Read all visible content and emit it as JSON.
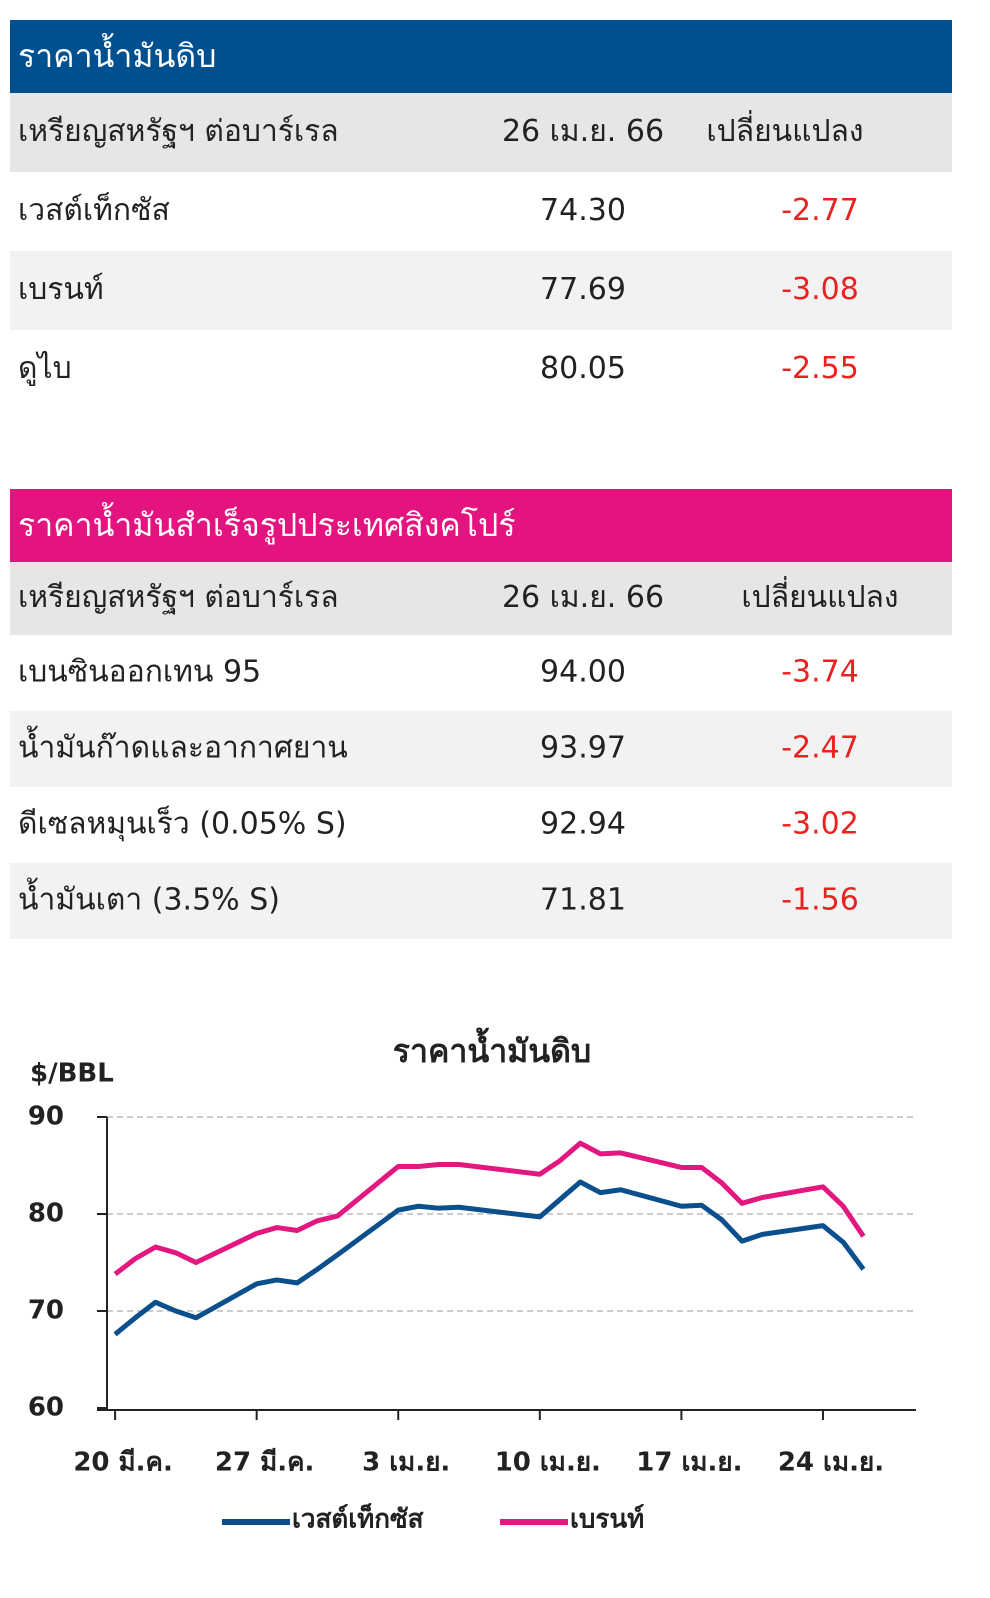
{
  "crude_table": {
    "title": "ราคาน้ำมันดิบ",
    "header": [
      "เหรียญสหรัฐฯ ต่อบาร์เรล",
      "26 เม.ย. 66",
      "เปลี่ยนแปลง"
    ],
    "rows": [
      [
        "เวสต์เท็กซัส",
        "74.30",
        "-2.77"
      ],
      [
        "เบรนท์",
        "77.69",
        "-3.08"
      ],
      [
        "ดูไบ",
        "80.05",
        "-2.55"
      ]
    ]
  },
  "refined_table": {
    "title": "ราคาน้ำมันสำเร็จรูปประเทศสิงคโปร์",
    "header": [
      "เหรียญสหรัฐฯ ต่อบาร์เรล",
      "26 เม.ย. 66",
      "เปลี่ยนแปลง"
    ],
    "rows": [
      [
        "เบนซินออกเทน 95",
        "94.00",
        "-3.74"
      ],
      [
        "น้ำมันก๊าดและอากาศยาน",
        "93.97",
        "-2.47"
      ],
      [
        "ดีเซลหมุนเร็ว (0.05% S)",
        "92.94",
        "-3.02"
      ],
      [
        "น้ำมันเตา (3.5% S)",
        "71.81",
        "-1.56"
      ]
    ]
  },
  "chart_data": {
    "type": "line",
    "title": "ราคาน้ำมันดิบ",
    "y_label": "$/BBL",
    "x": [
      0,
      1,
      2,
      3,
      4,
      7,
      8,
      9,
      10,
      11,
      14,
      15,
      16,
      17,
      21,
      22,
      23,
      24,
      25,
      28,
      29,
      30,
      31,
      32,
      35,
      36,
      37
    ],
    "xlim": [
      -0.4,
      39.6
    ],
    "xticks": [
      {
        "value": 0,
        "label": "20 มี.ค."
      },
      {
        "value": 7,
        "label": "27 มี.ค."
      },
      {
        "value": 14,
        "label": "3 เม.ย."
      },
      {
        "value": 21,
        "label": "10 เม.ย."
      },
      {
        "value": 28,
        "label": "17 เม.ย."
      },
      {
        "value": 35,
        "label": "24 เม.ย."
      }
    ],
    "ylim": [
      60,
      90
    ],
    "yticks": [
      60,
      70,
      80,
      90
    ],
    "grid": true,
    "series": [
      {
        "name": "เวสต์เท็กซัส",
        "color": "#0b4f8c",
        "values": [
          67.6,
          69.3,
          70.9,
          70.0,
          69.3,
          72.8,
          73.2,
          72.9,
          74.3,
          75.8,
          80.4,
          80.8,
          80.6,
          80.7,
          79.7,
          81.5,
          83.3,
          82.2,
          82.5,
          80.8,
          80.9,
          79.4,
          77.2,
          77.9,
          78.8,
          77.1,
          74.3
        ]
      },
      {
        "name": "เบรนท์",
        "color": "#e2177f",
        "values": [
          73.8,
          75.4,
          76.6,
          76.0,
          75.0,
          78.0,
          78.6,
          78.3,
          79.3,
          79.8,
          84.9,
          84.9,
          85.1,
          85.1,
          84.1,
          85.5,
          87.3,
          86.2,
          86.3,
          84.8,
          84.8,
          83.2,
          81.1,
          81.7,
          82.8,
          80.8,
          77.7
        ]
      }
    ]
  }
}
